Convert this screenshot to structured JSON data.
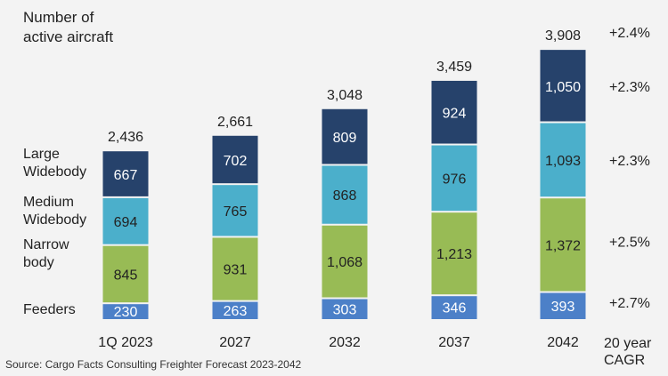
{
  "chart_data": {
    "type": "bar",
    "stacked": true,
    "ylabel_lines": [
      "Number of",
      "active aircraft"
    ],
    "categories": [
      "1Q 2023",
      "2027",
      "2032",
      "2037",
      "2042"
    ],
    "series": [
      {
        "name": "Feeders",
        "legend_lines": [
          "Feeders"
        ],
        "color": "#4c80c8",
        "text_color": "#ffffff",
        "values": [
          230,
          263,
          303,
          346,
          393
        ]
      },
      {
        "name": "Narrow body",
        "legend_lines": [
          "Narrow",
          "body"
        ],
        "color": "#98bb55",
        "text_color": "#222222",
        "values": [
          845,
          931,
          1068,
          1213,
          1372
        ]
      },
      {
        "name": "Medium Widebody",
        "legend_lines": [
          "Medium",
          "Widebody"
        ],
        "color": "#4bafcb",
        "text_color": "#222222",
        "values": [
          694,
          765,
          868,
          976,
          1093
        ]
      },
      {
        "name": "Large Widebody",
        "legend_lines": [
          "Large",
          "Widebody"
        ],
        "color": "#26426b",
        "text_color": "#ffffff",
        "values": [
          667,
          702,
          809,
          924,
          1050
        ]
      }
    ],
    "value_labels": [
      [
        "230",
        "263",
        "303",
        "346",
        "393"
      ],
      [
        "845",
        "931",
        "1,068",
        "1,213",
        "1,372"
      ],
      [
        "694",
        "765",
        "868",
        "976",
        "1,093"
      ],
      [
        "667",
        "702",
        "809",
        "924",
        "1,050"
      ]
    ],
    "totals": [
      2436,
      2661,
      3048,
      3459,
      3908
    ],
    "total_labels": [
      "2,436",
      "2,661",
      "3,048",
      "3,459",
      "3,908"
    ],
    "cagr": {
      "title_lines": [
        "20 year",
        "CAGR"
      ],
      "total": "+2.4%",
      "by_series": [
        "+2.7%",
        "+2.5%",
        "+2.3%",
        "+2.3%"
      ]
    },
    "ylim": [
      0,
      4000
    ],
    "grid": false,
    "legend_placement": "left"
  },
  "source": "Source: Cargo Facts Consulting Freighter Forecast 2023-2042"
}
